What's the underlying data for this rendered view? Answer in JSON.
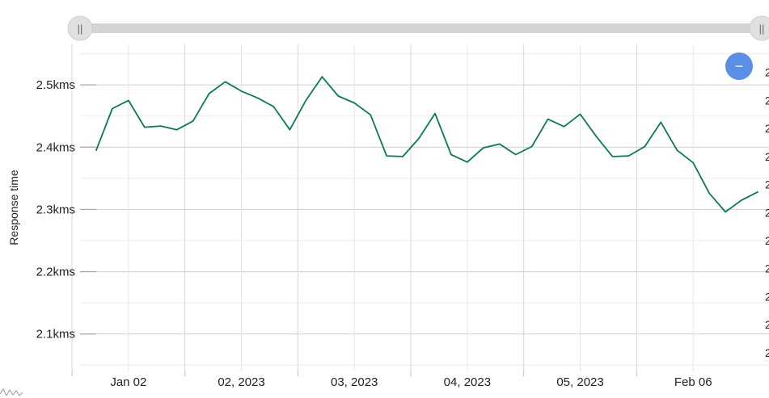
{
  "chart_data": {
    "type": "line",
    "title": "",
    "xlabel": "",
    "ylabel": "Response time",
    "y_ticks": [
      "2.5kms",
      "2.4kms",
      "2.3kms",
      "2.2kms",
      "2.1kms"
    ],
    "y_tick_values": [
      2500,
      2400,
      2300,
      2200,
      2100
    ],
    "ylim": [
      2040,
      2565
    ],
    "x_ticks": [
      "Jan 02",
      "02, 2023",
      "03, 2023",
      "04, 2023",
      "05, 2023",
      "Feb 06"
    ],
    "x_tick_values": [
      2,
      9,
      16,
      23,
      30,
      37
    ],
    "xlim": [
      -1,
      41.7
    ],
    "right_axis_visible_text": "2",
    "series": [
      {
        "color": "#0a7a55",
        "x": [
          0,
          1,
          2,
          3,
          4,
          5,
          6,
          7,
          8,
          9,
          10,
          11,
          12,
          13,
          14,
          15,
          16,
          17,
          18,
          19,
          20,
          21,
          22,
          23,
          24,
          25,
          26,
          27,
          28,
          29,
          30,
          31,
          32,
          33,
          34,
          35,
          36,
          37,
          38,
          39,
          40,
          41
        ],
        "values": [
          2395,
          2462,
          2475,
          2432,
          2434,
          2428,
          2442,
          2486,
          2505,
          2490,
          2479,
          2465,
          2428,
          2475,
          2513,
          2482,
          2471,
          2452,
          2386,
          2385,
          2414,
          2454,
          2388,
          2376,
          2399,
          2405,
          2388,
          2401,
          2445,
          2433,
          2453,
          2417,
          2385,
          2386,
          2401,
          2440,
          2395,
          2375,
          2326,
          2296,
          2315,
          2328
        ]
      }
    ],
    "grid": true,
    "legend": "none"
  },
  "controls": {
    "zoom_out_glyph": "−",
    "left_handle_glyph": "||",
    "right_handle_glyph": "||"
  },
  "colors": {
    "line": "#0a7a55",
    "grid": "#e4e4e4",
    "scroll_track": "#d4d4d4",
    "handle": "#e0e0e0",
    "zoom_button": "#5b8ee6"
  }
}
